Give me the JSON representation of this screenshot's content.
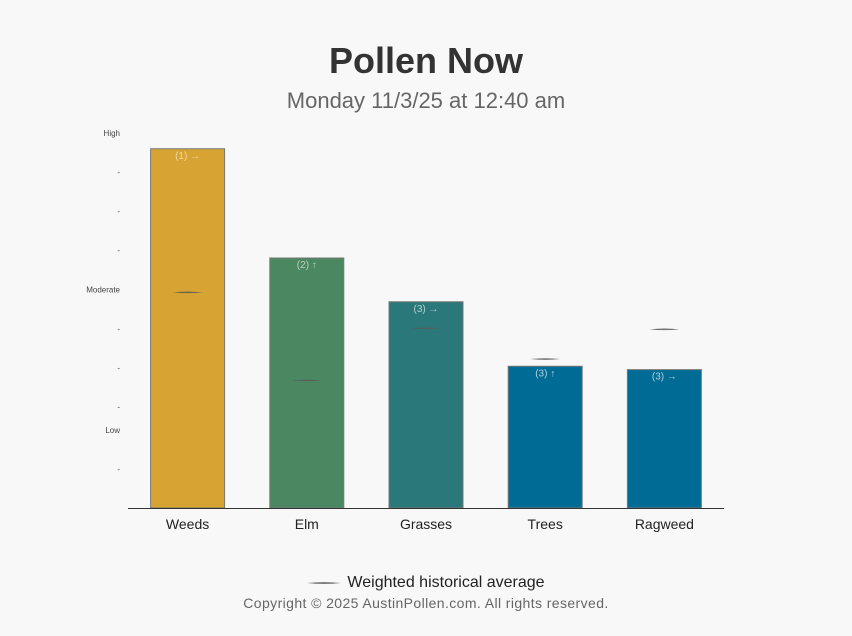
{
  "header": {
    "title": "Pollen Now",
    "subtitle": "Monday 11/3/25 at 12:40 am"
  },
  "legend": {
    "label": "Weighted historical average"
  },
  "footer": {
    "copyright": "Copyright © 2025 AustinPollen.com.  All rights reserved."
  },
  "chart_data": {
    "type": "bar",
    "ylim": [
      0,
      1
    ],
    "y_ticks": [
      {
        "value": 1.0,
        "label": "High"
      },
      {
        "value": 0.8958,
        "label": "-"
      },
      {
        "value": 0.7917,
        "label": "-"
      },
      {
        "value": 0.6875,
        "label": "-"
      },
      {
        "value": 0.5833,
        "label": "Moderate"
      },
      {
        "value": 0.4792,
        "label": "-"
      },
      {
        "value": 0.375,
        "label": "-"
      },
      {
        "value": 0.2708,
        "label": "-"
      },
      {
        "value": 0.2083,
        "label": "Low"
      },
      {
        "value": 0.1042,
        "label": "-"
      }
    ],
    "categories": [
      "Weeds",
      "Elm",
      "Grasses",
      "Trees",
      "Ragweed"
    ],
    "values": [
      0.958,
      0.6667,
      0.55,
      0.378,
      0.369
    ],
    "averages": [
      0.575,
      0.3403,
      0.4792,
      0.3972,
      0.4764
    ],
    "bar_labels": [
      "(1) →",
      "(2) ↑",
      "(3) →",
      "(3) ↑",
      "(3) →"
    ],
    "colors": [
      "#d7a332",
      "#4b8862",
      "#2a787a",
      "#006b94",
      "#006b94"
    ],
    "label_colors": [
      "#efd9a0",
      "#b7d2c0",
      "#b3d1d2",
      "#b3d0de",
      "#b3d0de"
    ],
    "grid": false
  }
}
